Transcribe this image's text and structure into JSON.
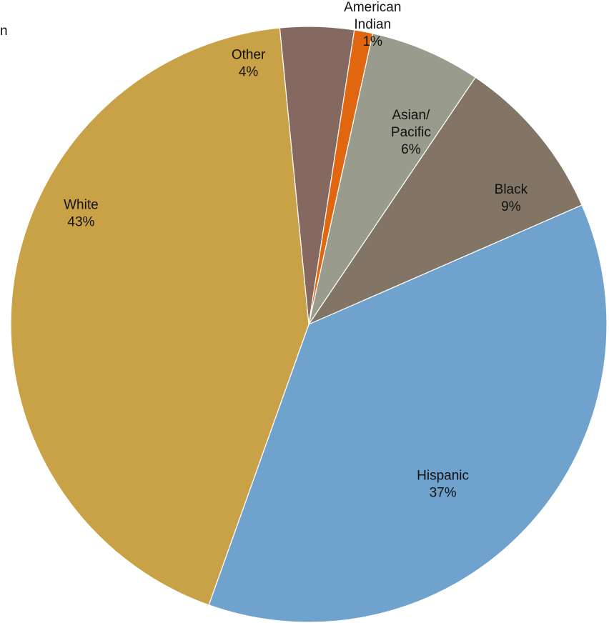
{
  "chart_data": {
    "type": "pie",
    "title": "",
    "slices": [
      {
        "label": "Other",
        "value": 4,
        "value_label": "4%",
        "color": "#856961"
      },
      {
        "label": "American Indian",
        "label_lines": [
          "American",
          "Indian"
        ],
        "value": 1,
        "value_label": "1%",
        "color": "#e06610"
      },
      {
        "label": "Asian/ Pacific",
        "label_lines": [
          "Asian/",
          "Pacific"
        ],
        "value": 6,
        "value_label": "6%",
        "color": "#999b8d"
      },
      {
        "label": "Black",
        "value": 9,
        "value_label": "9%",
        "color": "#827565"
      },
      {
        "label": "Hispanic",
        "value": 37,
        "value_label": "37%",
        "color": "#6fa2cc"
      },
      {
        "label": "White",
        "value": 43,
        "value_label": "43%",
        "color": "#c9a146"
      }
    ],
    "stray_text": "n"
  }
}
